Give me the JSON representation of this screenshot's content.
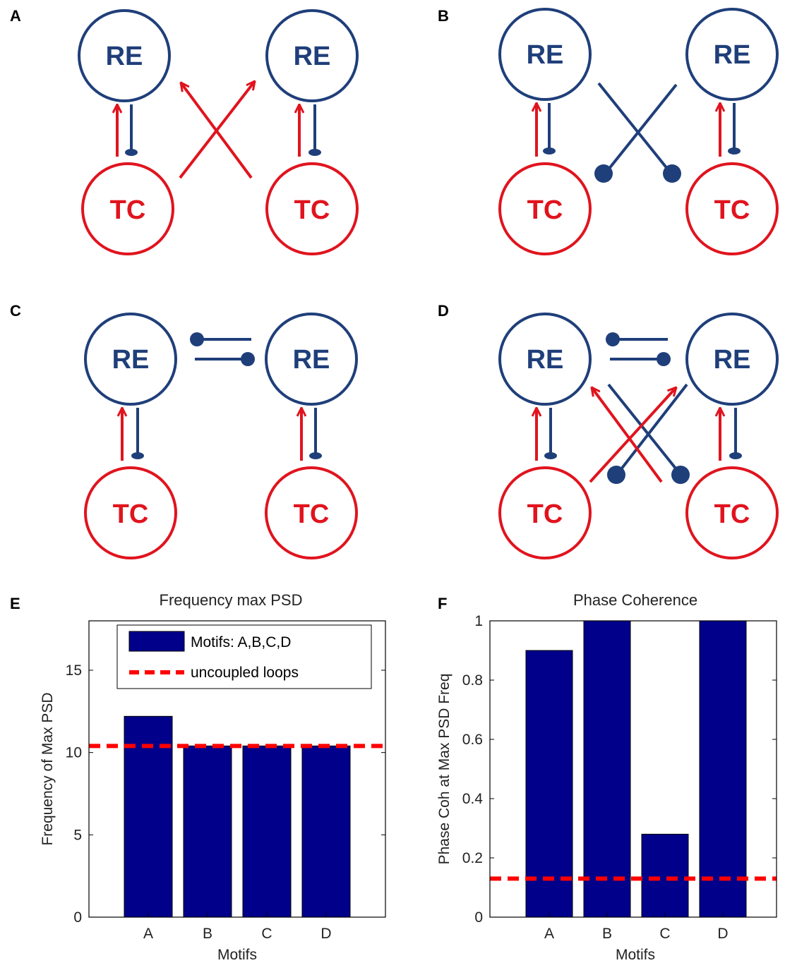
{
  "panels": {
    "A": "A",
    "B": "B",
    "C": "C",
    "D": "D",
    "E": "E",
    "F": "F"
  },
  "nodes": {
    "re": "RE",
    "tc": "TC"
  },
  "colors": {
    "excitatory": "#e0141e",
    "inhibitory": "#1f3f7a",
    "bar": "#00008b",
    "dashed": "#ff0000"
  },
  "chart_data": [
    {
      "type": "bar",
      "title": "Frequency max PSD",
      "xlabel": "Motifs",
      "ylabel": "Frequency of Max PSD",
      "categories": [
        "A",
        "B",
        "C",
        "D"
      ],
      "values": [
        12.2,
        10.4,
        10.4,
        10.4
      ],
      "reference_line": 10.4,
      "ylim": [
        0,
        18
      ],
      "yticks": [
        0,
        5,
        10,
        15
      ],
      "legend": [
        "Motifs: A,B,C,D",
        "uncoupled loops"
      ],
      "legend_position": "top"
    },
    {
      "type": "bar",
      "title": "Phase Coherence",
      "xlabel": "Motifs",
      "ylabel": "Phase Coh at Max PSD Freq",
      "categories": [
        "A",
        "B",
        "C",
        "D"
      ],
      "values": [
        0.9,
        1.0,
        0.28,
        1.0
      ],
      "reference_line": 0.13,
      "ylim": [
        0,
        1
      ],
      "yticks": [
        "0",
        "0.2",
        "0.4",
        "0.6",
        "0.8",
        "1"
      ]
    }
  ]
}
